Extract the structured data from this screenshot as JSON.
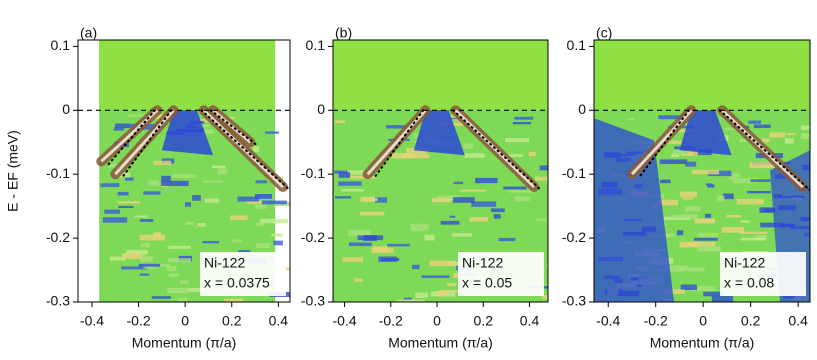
{
  "chart_data": [
    {
      "type": "image",
      "panel_label": "(a)",
      "xlabel": "Momentum (π/a)",
      "ylabel": "E - EF (meV)",
      "annotations": [
        "Ni-122",
        "x = 0.0375"
      ],
      "xlim": [
        -0.46,
        0.45
      ],
      "ylim": [
        -0.3,
        0.11
      ],
      "xticks": [
        -0.4,
        -0.2,
        0,
        0.2,
        0.4
      ],
      "yticks": [
        0.1,
        0,
        -0.1,
        -0.2,
        -0.3
      ]
    },
    {
      "type": "image",
      "panel_label": "(b)",
      "xlabel": "Momentum (π/a)",
      "annotations": [
        "Ni-122",
        "x = 0.05"
      ],
      "xlim": [
        -0.45,
        0.48
      ],
      "ylim": [
        -0.3,
        0.11
      ],
      "xticks": [
        -0.4,
        -0.2,
        0,
        0.2,
        0.4
      ],
      "yticks": [
        0.1,
        0,
        -0.1,
        -0.2,
        -0.3
      ]
    },
    {
      "type": "image",
      "panel_label": "(c)",
      "xlabel": "Momentum (π/a)",
      "annotations": [
        "Ni-122",
        "x = 0.08"
      ],
      "xlim": [
        -0.46,
        0.45
      ],
      "ylim": [
        -0.3,
        0.11
      ],
      "xticks": [
        -0.4,
        -0.2,
        0,
        0.2,
        0.4
      ],
      "yticks": [
        0.1,
        0,
        -0.1,
        -0.2,
        -0.3
      ]
    }
  ]
}
